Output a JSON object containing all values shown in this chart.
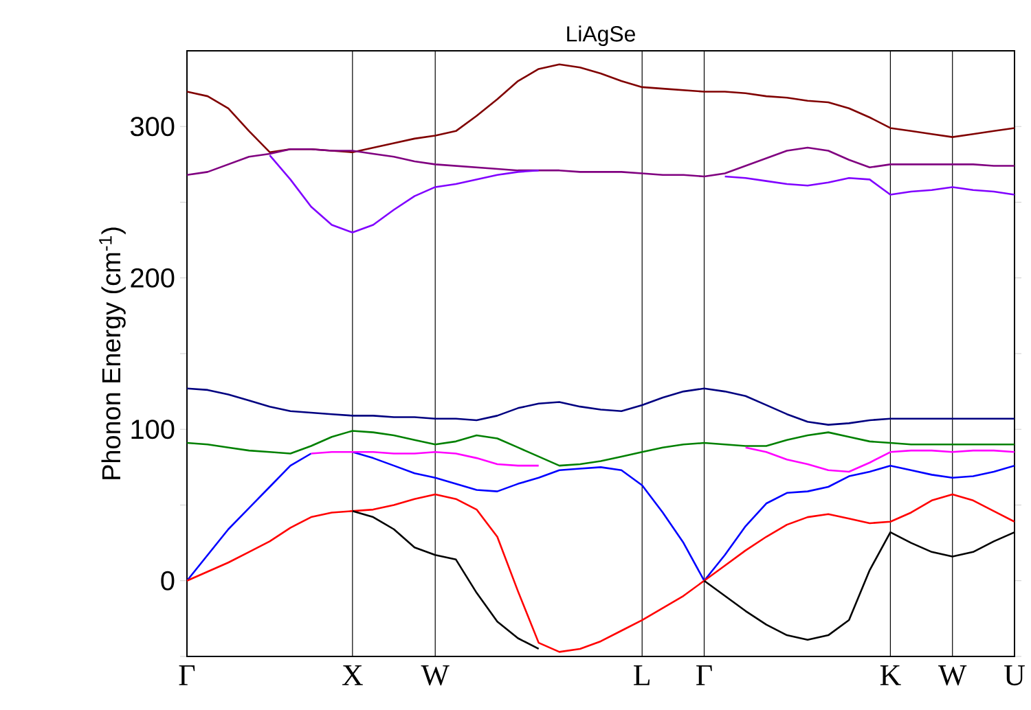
{
  "chart_data": {
    "type": "line",
    "title": "LiAgSe",
    "ylabel": "Phonon Energy (cm$^{-1}$)",
    "categories": [
      "Γ",
      null,
      null,
      null,
      null,
      null,
      null,
      null,
      "X",
      null,
      null,
      null,
      "W",
      null,
      null,
      null,
      null,
      null,
      null,
      null,
      null,
      null,
      "L",
      null,
      null,
      "Γ",
      null,
      null,
      null,
      null,
      null,
      null,
      null,
      null,
      "K",
      null,
      null,
      "W",
      null,
      null,
      "U"
    ],
    "ylim": [
      -50,
      350
    ],
    "yticks": [
      {
        "value": -50,
        "label": null
      },
      0,
      {
        "value": 50,
        "label": null
      },
      100,
      {
        "value": 150,
        "label": null
      },
      200,
      {
        "value": 250,
        "label": null
      },
      300
    ],
    "grid": "x",
    "series": [
      {
        "color": "#800000",
        "values": [
          323,
          320,
          312,
          297,
          283,
          285,
          285,
          284,
          283,
          286,
          289,
          292,
          294,
          297,
          307,
          318,
          330,
          338,
          341,
          339,
          335,
          330,
          326,
          325,
          324,
          323,
          323,
          322,
          320,
          319,
          317,
          316,
          312,
          306,
          299,
          297,
          295,
          293,
          295,
          297,
          299
        ]
      },
      {
        "color": "#800080",
        "values": [
          268,
          270,
          275,
          280,
          282,
          285,
          285,
          284,
          284,
          282,
          280,
          277,
          275,
          274,
          273,
          272,
          271,
          271,
          271,
          270,
          270,
          270,
          269,
          268,
          268,
          267,
          269,
          274,
          279,
          284,
          286,
          284,
          278,
          273,
          275,
          275,
          275,
          275,
          275,
          274,
          274
        ]
      },
      {
        "color": "#8000ff",
        "values": [
          null,
          null,
          null,
          null,
          281,
          265,
          247,
          235,
          230,
          235,
          245,
          254,
          260,
          262,
          265,
          268,
          270,
          271,
          null,
          null,
          null,
          null,
          null,
          null,
          null,
          null,
          267,
          266,
          264,
          262,
          261,
          263,
          266,
          265,
          255,
          257,
          258,
          260,
          258,
          257,
          255
        ]
      },
      {
        "color": "#000080",
        "values": [
          127,
          126,
          123,
          119,
          115,
          112,
          111,
          110,
          109,
          109,
          108,
          108,
          107,
          107,
          106,
          109,
          114,
          117,
          118,
          115,
          113,
          112,
          116,
          121,
          125,
          127,
          125,
          122,
          116,
          110,
          105,
          103,
          104,
          106,
          107,
          107,
          107,
          107,
          107,
          107,
          107
        ]
      },
      {
        "color": "#008000",
        "values": [
          91,
          90,
          88,
          86,
          85,
          84,
          89,
          95,
          99,
          98,
          96,
          93,
          90,
          92,
          96,
          94,
          88,
          82,
          76,
          77,
          79,
          82,
          85,
          88,
          90,
          91,
          90,
          89,
          89,
          93,
          96,
          98,
          95,
          92,
          91,
          90,
          90,
          90,
          90,
          90,
          90
        ]
      },
      {
        "color": "#0000ff",
        "values": [
          0,
          17,
          34,
          48,
          62,
          76,
          84,
          null,
          85,
          81,
          76,
          71,
          68,
          64,
          60,
          59,
          64,
          68,
          73,
          74,
          75,
          73,
          63,
          45,
          25,
          0,
          17,
          36,
          51,
          58,
          59,
          62,
          69,
          72,
          76,
          73,
          70,
          68,
          69,
          72,
          76
        ]
      },
      {
        "color": "#ff00ff",
        "values": [
          null,
          null,
          null,
          null,
          null,
          null,
          84,
          85,
          85,
          85,
          84,
          84,
          85,
          84,
          81,
          77,
          76,
          76,
          null,
          null,
          null,
          null,
          null,
          null,
          null,
          null,
          null,
          88,
          85,
          80,
          77,
          73,
          72,
          78,
          85,
          86,
          86,
          85,
          86,
          86,
          85
        ]
      },
      {
        "color": "#ff0000",
        "values": [
          0,
          6,
          12,
          19,
          26,
          35,
          42,
          45,
          46,
          47,
          50,
          54,
          57,
          54,
          47,
          29,
          -7,
          -41,
          -47,
          -45,
          -40,
          -33,
          -26,
          -18,
          -10,
          0,
          10,
          20,
          29,
          37,
          42,
          44,
          41,
          38,
          39,
          45,
          53,
          57,
          53,
          46,
          39
        ]
      },
      {
        "color": "#000000",
        "values": [
          null,
          null,
          null,
          null,
          null,
          null,
          null,
          null,
          46,
          42,
          34,
          22,
          17,
          14,
          -8,
          -27,
          -38,
          -45,
          null,
          null,
          null,
          null,
          null,
          null,
          null,
          0,
          -10,
          -20,
          -29,
          -36,
          -39,
          -36,
          -26,
          7,
          32,
          25,
          19,
          16,
          19,
          26,
          32
        ]
      }
    ]
  }
}
